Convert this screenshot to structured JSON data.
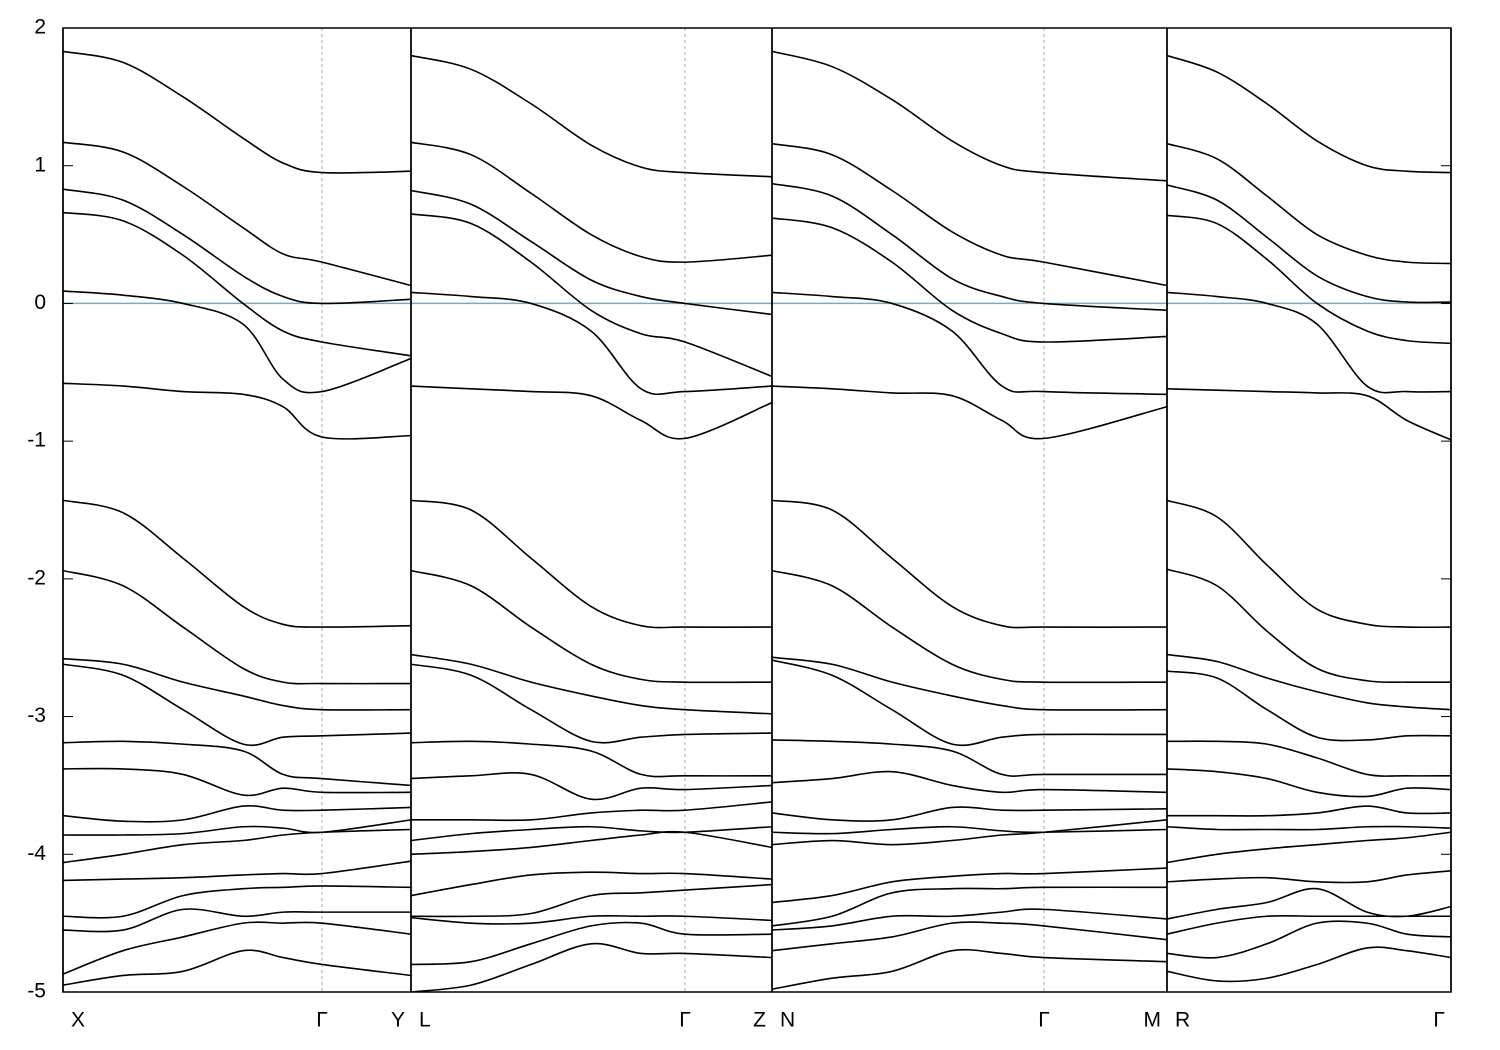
{
  "chart_data": [
    {
      "type": "line",
      "color": "#000000",
      "hline": 0,
      "hline_color": "#5fb8c8",
      "xlim": [
        0,
        348
      ],
      "ylim": [
        -5,
        2
      ],
      "yticks": [
        -5,
        -4,
        -3,
        -2,
        -1,
        0,
        1,
        2
      ],
      "xticks": [
        {
          "value": 0,
          "label": "X"
        },
        {
          "value": 259,
          "label": "Γ"
        },
        {
          "value": 348,
          "label": "Y"
        }
      ],
      "x": [
        0,
        60,
        120,
        180,
        220,
        259,
        348
      ],
      "series": [
        {
          "values": [
            1.83,
            1.75,
            1.5,
            1.2,
            1.02,
            0.95,
            0.96
          ]
        },
        {
          "values": [
            1.17,
            1.1,
            0.85,
            0.55,
            0.36,
            0.3,
            0.13
          ]
        },
        {
          "values": [
            0.83,
            0.75,
            0.5,
            0.2,
            0.05,
            0.0,
            0.03
          ]
        },
        {
          "values": [
            0.66,
            0.6,
            0.35,
            0.0,
            -0.2,
            -0.28,
            -0.38
          ]
        },
        {
          "values": [
            0.09,
            0.06,
            0.0,
            -0.15,
            -0.55,
            -0.64,
            -0.4
          ]
        },
        {
          "values": [
            -0.58,
            -0.6,
            -0.64,
            -0.66,
            -0.75,
            -0.97,
            -0.96
          ]
        },
        {
          "values": [
            -1.43,
            -1.52,
            -1.85,
            -2.2,
            -2.33,
            -2.35,
            -2.34
          ]
        },
        {
          "values": [
            -1.94,
            -2.05,
            -2.35,
            -2.65,
            -2.75,
            -2.76,
            -2.76
          ]
        },
        {
          "values": [
            -2.58,
            -2.62,
            -2.75,
            -2.85,
            -2.92,
            -2.95,
            -2.95
          ]
        },
        {
          "values": [
            -2.62,
            -2.7,
            -2.95,
            -3.2,
            -3.15,
            -3.14,
            -3.12
          ]
        },
        {
          "values": [
            -3.19,
            -3.18,
            -3.2,
            -3.25,
            -3.42,
            -3.45,
            -3.5
          ]
        },
        {
          "values": [
            -3.38,
            -3.38,
            -3.42,
            -3.57,
            -3.52,
            -3.55,
            -3.55
          ]
        },
        {
          "values": [
            -3.72,
            -3.76,
            -3.75,
            -3.65,
            -3.68,
            -3.68,
            -3.66
          ]
        },
        {
          "values": [
            -3.86,
            -3.86,
            -3.85,
            -3.8,
            -3.81,
            -3.84,
            -3.75
          ]
        },
        {
          "values": [
            -4.06,
            -4.0,
            -3.93,
            -3.9,
            -3.86,
            -3.84,
            -3.82
          ]
        },
        {
          "values": [
            -4.19,
            -4.18,
            -4.17,
            -4.15,
            -4.14,
            -4.14,
            -4.05
          ]
        },
        {
          "values": [
            -4.45,
            -4.45,
            -4.3,
            -4.25,
            -4.24,
            -4.23,
            -4.24
          ]
        },
        {
          "values": [
            -4.55,
            -4.55,
            -4.4,
            -4.45,
            -4.42,
            -4.42,
            -4.42
          ]
        },
        {
          "values": [
            -4.87,
            -4.7,
            -4.6,
            -4.5,
            -4.5,
            -4.5,
            -4.58
          ]
        },
        {
          "values": [
            -4.95,
            -4.88,
            -4.85,
            -4.7,
            -4.75,
            -4.8,
            -4.88
          ]
        }
      ]
    },
    {
      "type": "line",
      "color": "#000000",
      "hline": 0,
      "hline_color": "#5fb8c8",
      "xlim": [
        0,
        361
      ],
      "ylim": [
        -5,
        2
      ],
      "xticks": [
        {
          "value": 0,
          "label": "L"
        },
        {
          "value": 274,
          "label": "Γ"
        },
        {
          "value": 361,
          "label": "Z"
        }
      ],
      "x": [
        0,
        60,
        120,
        180,
        230,
        274,
        361
      ],
      "series": [
        {
          "values": [
            1.8,
            1.7,
            1.45,
            1.15,
            0.99,
            0.95,
            0.92
          ]
        },
        {
          "values": [
            1.17,
            1.08,
            0.8,
            0.5,
            0.34,
            0.3,
            0.35
          ]
        },
        {
          "values": [
            0.82,
            0.72,
            0.45,
            0.17,
            0.05,
            0.0,
            -0.08
          ]
        },
        {
          "values": [
            0.65,
            0.58,
            0.3,
            -0.05,
            -0.22,
            -0.28,
            -0.53
          ]
        },
        {
          "values": [
            0.08,
            0.05,
            0.0,
            -0.2,
            -0.62,
            -0.64,
            -0.6
          ]
        },
        {
          "values": [
            -0.6,
            -0.62,
            -0.64,
            -0.67,
            -0.85,
            -0.98,
            -0.72
          ]
        },
        {
          "values": [
            -1.43,
            -1.5,
            -1.85,
            -2.2,
            -2.34,
            -2.35,
            -2.35
          ]
        },
        {
          "values": [
            -1.94,
            -2.05,
            -2.35,
            -2.62,
            -2.73,
            -2.75,
            -2.75
          ]
        },
        {
          "values": [
            -2.55,
            -2.62,
            -2.75,
            -2.85,
            -2.92,
            -2.95,
            -2.98
          ]
        },
        {
          "values": [
            -2.62,
            -2.7,
            -2.95,
            -3.18,
            -3.15,
            -3.13,
            -3.12
          ]
        },
        {
          "values": [
            -3.19,
            -3.18,
            -3.2,
            -3.25,
            -3.42,
            -3.43,
            -3.43
          ]
        },
        {
          "values": [
            -3.45,
            -3.43,
            -3.42,
            -3.6,
            -3.52,
            -3.53,
            -3.5
          ]
        },
        {
          "values": [
            -3.75,
            -3.75,
            -3.75,
            -3.7,
            -3.68,
            -3.68,
            -3.62
          ]
        },
        {
          "values": [
            -3.9,
            -3.85,
            -3.82,
            -3.8,
            -3.83,
            -3.84,
            -3.8
          ]
        },
        {
          "values": [
            -4.0,
            -3.98,
            -3.95,
            -3.9,
            -3.86,
            -3.84,
            -3.95
          ]
        },
        {
          "values": [
            -4.3,
            -4.22,
            -4.15,
            -4.13,
            -4.14,
            -4.14,
            -4.18
          ]
        },
        {
          "values": [
            -4.45,
            -4.45,
            -4.43,
            -4.3,
            -4.28,
            -4.26,
            -4.22
          ]
        },
        {
          "values": [
            -4.46,
            -4.5,
            -4.5,
            -4.45,
            -4.45,
            -4.45,
            -4.48
          ]
        },
        {
          "values": [
            -4.8,
            -4.78,
            -4.65,
            -4.52,
            -4.5,
            -4.58,
            -4.58
          ]
        },
        {
          "values": [
            -5.0,
            -4.95,
            -4.8,
            -4.65,
            -4.72,
            -4.72,
            -4.75
          ]
        }
      ]
    },
    {
      "type": "line",
      "color": "#000000",
      "hline": 0,
      "hline_color": "#5fb8c8",
      "xlim": [
        0,
        395
      ],
      "ylim": [
        -5,
        2
      ],
      "xticks": [
        {
          "value": 0,
          "label": "N"
        },
        {
          "value": 272,
          "label": "Γ"
        },
        {
          "value": 395,
          "label": "M"
        }
      ],
      "x": [
        0,
        60,
        120,
        180,
        230,
        272,
        395
      ],
      "series": [
        {
          "values": [
            1.83,
            1.72,
            1.48,
            1.18,
            1.0,
            0.95,
            0.89
          ]
        },
        {
          "values": [
            1.16,
            1.08,
            0.82,
            0.52,
            0.35,
            0.3,
            0.13
          ]
        },
        {
          "values": [
            0.87,
            0.78,
            0.5,
            0.18,
            0.05,
            0.0,
            -0.05
          ]
        },
        {
          "values": [
            0.62,
            0.55,
            0.3,
            -0.05,
            -0.22,
            -0.28,
            -0.24
          ]
        },
        {
          "values": [
            0.08,
            0.05,
            0.0,
            -0.2,
            -0.6,
            -0.64,
            -0.66
          ]
        },
        {
          "values": [
            -0.6,
            -0.62,
            -0.65,
            -0.67,
            -0.85,
            -0.98,
            -0.75
          ]
        },
        {
          "values": [
            -1.43,
            -1.5,
            -1.85,
            -2.2,
            -2.34,
            -2.35,
            -2.35
          ]
        },
        {
          "values": [
            -1.94,
            -2.05,
            -2.35,
            -2.62,
            -2.73,
            -2.75,
            -2.75
          ]
        },
        {
          "values": [
            -2.57,
            -2.62,
            -2.75,
            -2.85,
            -2.92,
            -2.95,
            -2.95
          ]
        },
        {
          "values": [
            -2.59,
            -2.7,
            -2.95,
            -3.2,
            -3.15,
            -3.13,
            -3.13
          ]
        },
        {
          "values": [
            -3.17,
            -3.18,
            -3.2,
            -3.25,
            -3.42,
            -3.42,
            -3.42
          ]
        },
        {
          "values": [
            -3.48,
            -3.45,
            -3.4,
            -3.5,
            -3.55,
            -3.53,
            -3.55
          ]
        },
        {
          "values": [
            -3.7,
            -3.75,
            -3.75,
            -3.66,
            -3.68,
            -3.68,
            -3.67
          ]
        },
        {
          "values": [
            -3.84,
            -3.85,
            -3.82,
            -3.8,
            -3.83,
            -3.84,
            -3.82
          ]
        },
        {
          "values": [
            -3.93,
            -3.9,
            -3.93,
            -3.9,
            -3.86,
            -3.84,
            -3.75
          ]
        },
        {
          "values": [
            -4.35,
            -4.3,
            -4.2,
            -4.16,
            -4.14,
            -4.14,
            -4.1
          ]
        },
        {
          "values": [
            -4.52,
            -4.45,
            -4.28,
            -4.25,
            -4.25,
            -4.24,
            -4.24
          ]
        },
        {
          "values": [
            -4.55,
            -4.52,
            -4.45,
            -4.45,
            -4.42,
            -4.4,
            -4.47
          ]
        },
        {
          "values": [
            -4.7,
            -4.65,
            -4.6,
            -4.5,
            -4.5,
            -4.52,
            -4.62
          ]
        },
        {
          "values": [
            -4.98,
            -4.9,
            -4.85,
            -4.7,
            -4.72,
            -4.75,
            -4.78
          ]
        }
      ]
    },
    {
      "type": "line",
      "color": "#000000",
      "hline": 0,
      "hline_color": "#5fb8c8",
      "xlim": [
        0,
        284
      ],
      "ylim": [
        -5,
        2
      ],
      "xticks": [
        {
          "value": 0,
          "label": "R"
        },
        {
          "value": 284,
          "label": "Γ"
        }
      ],
      "x": [
        0,
        50,
        100,
        150,
        200,
        240,
        284
      ],
      "series": [
        {
          "values": [
            1.8,
            1.68,
            1.45,
            1.18,
            1.0,
            0.96,
            0.95
          ]
        },
        {
          "values": [
            1.16,
            1.05,
            0.78,
            0.5,
            0.35,
            0.3,
            0.29
          ]
        },
        {
          "values": [
            0.86,
            0.75,
            0.48,
            0.2,
            0.05,
            0.01,
            0.01
          ]
        },
        {
          "values": [
            0.64,
            0.58,
            0.32,
            0.0,
            -0.2,
            -0.27,
            -0.29
          ]
        },
        {
          "values": [
            0.08,
            0.05,
            0.0,
            -0.15,
            -0.6,
            -0.64,
            -0.64
          ]
        },
        {
          "values": [
            -0.62,
            -0.63,
            -0.64,
            -0.65,
            -0.67,
            -0.85,
            -0.99
          ]
        },
        {
          "values": [
            -1.43,
            -1.55,
            -1.9,
            -2.22,
            -2.33,
            -2.35,
            -2.35
          ]
        },
        {
          "values": [
            -1.93,
            -2.05,
            -2.38,
            -2.65,
            -2.74,
            -2.75,
            -2.75
          ]
        },
        {
          "values": [
            -2.55,
            -2.6,
            -2.72,
            -2.82,
            -2.9,
            -2.93,
            -2.95
          ]
        },
        {
          "values": [
            -2.67,
            -2.72,
            -2.95,
            -3.15,
            -3.17,
            -3.14,
            -3.14
          ]
        },
        {
          "values": [
            -3.18,
            -3.18,
            -3.2,
            -3.3,
            -3.42,
            -3.43,
            -3.43
          ]
        },
        {
          "values": [
            -3.38,
            -3.4,
            -3.45,
            -3.55,
            -3.58,
            -3.52,
            -3.53
          ]
        },
        {
          "values": [
            -3.72,
            -3.72,
            -3.72,
            -3.7,
            -3.65,
            -3.7,
            -3.7
          ]
        },
        {
          "values": [
            -3.8,
            -3.82,
            -3.82,
            -3.82,
            -3.8,
            -3.8,
            -3.81
          ]
        },
        {
          "values": [
            -4.06,
            -4.0,
            -3.96,
            -3.93,
            -3.9,
            -3.88,
            -3.84
          ]
        },
        {
          "values": [
            -4.2,
            -4.18,
            -4.17,
            -4.2,
            -4.2,
            -4.15,
            -4.12
          ]
        },
        {
          "values": [
            -4.47,
            -4.4,
            -4.35,
            -4.25,
            -4.42,
            -4.45,
            -4.38
          ]
        },
        {
          "values": [
            -4.58,
            -4.5,
            -4.45,
            -4.45,
            -4.45,
            -4.45,
            -4.45
          ]
        },
        {
          "values": [
            -4.72,
            -4.75,
            -4.65,
            -4.5,
            -4.5,
            -4.58,
            -4.6
          ]
        },
        {
          "values": [
            -4.85,
            -4.92,
            -4.9,
            -4.8,
            -4.68,
            -4.7,
            -4.75
          ]
        }
      ]
    }
  ]
}
